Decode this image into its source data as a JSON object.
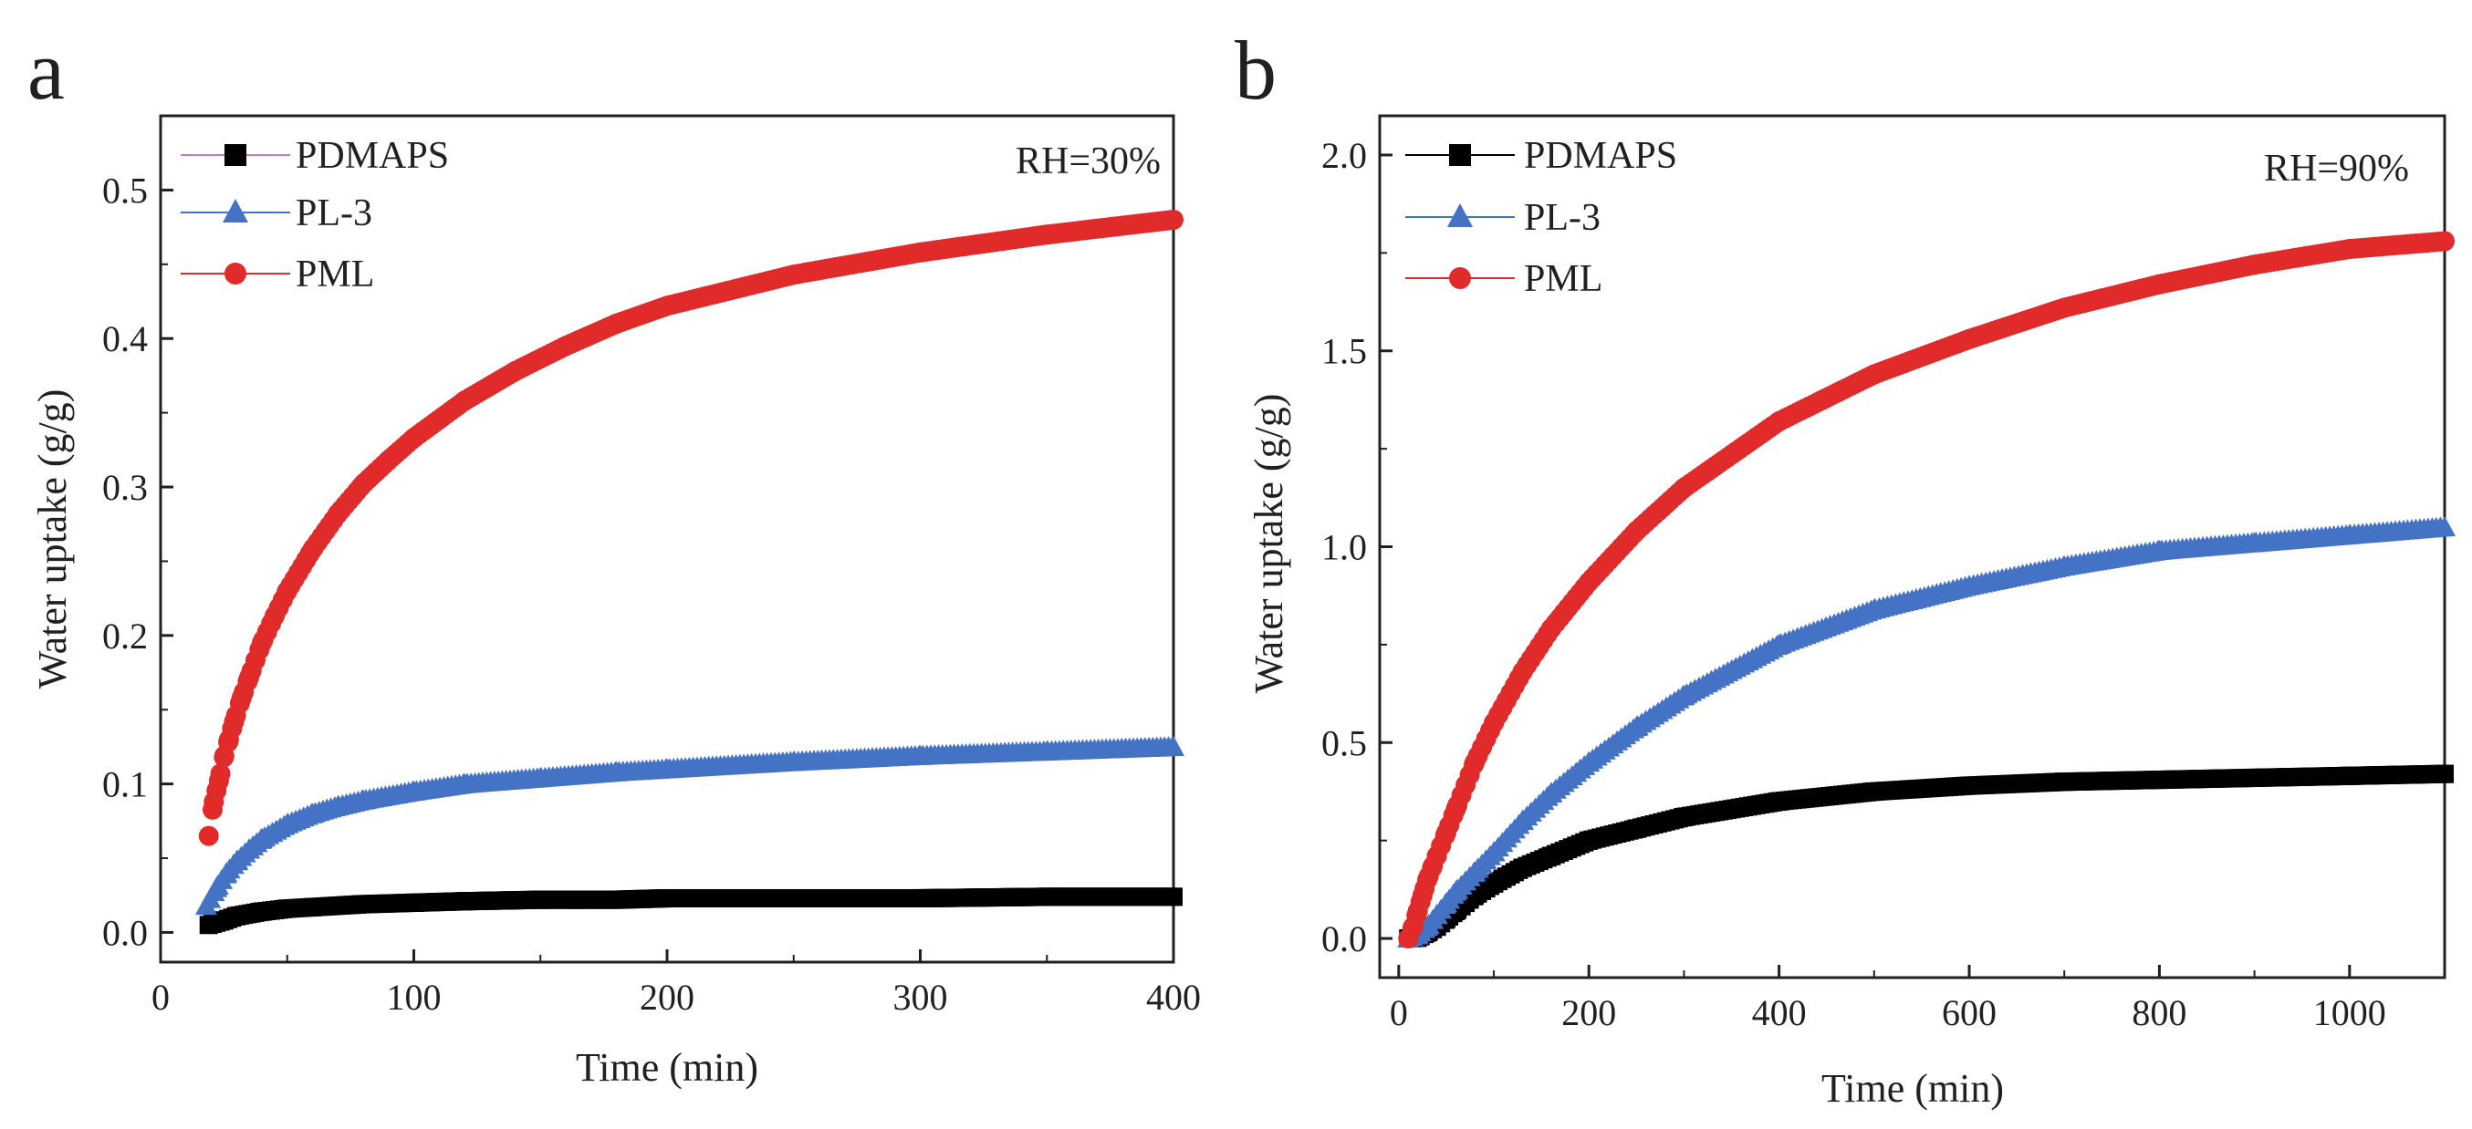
{
  "chart_data": [
    {
      "panel_label": "a",
      "type": "scatter",
      "title": "",
      "xlabel": "Time (min)",
      "ylabel": "Water uptake (g/g)",
      "xlim": [
        0,
        400
      ],
      "ylim": [
        -0.02,
        0.55
      ],
      "xticks": [
        0,
        100,
        200,
        300,
        400
      ],
      "xtick_labels": [
        "0",
        "100",
        "200",
        "300",
        "400"
      ],
      "yticks": [
        0.0,
        0.1,
        0.2,
        0.3,
        0.4,
        0.5
      ],
      "ytick_labels": [
        "0.0",
        "0.1",
        "0.2",
        "0.3",
        "0.4",
        "0.5"
      ],
      "grid": false,
      "legend_position": "top-left",
      "annotation": "RH=30%",
      "series": [
        {
          "name": "PDMAPS",
          "color": "#000000",
          "line_color": "#c080c0",
          "marker": "square",
          "x": [
            19,
            25,
            30,
            40,
            50,
            60,
            80,
            100,
            120,
            150,
            180,
            200,
            250,
            300,
            350,
            400
          ],
          "y": [
            0.005,
            0.008,
            0.011,
            0.014,
            0.016,
            0.017,
            0.019,
            0.02,
            0.021,
            0.022,
            0.022,
            0.023,
            0.023,
            0.023,
            0.024,
            0.024
          ]
        },
        {
          "name": "PL-3",
          "color": "#4472c4",
          "line_color": "#4472c4",
          "marker": "triangle",
          "x": [
            18,
            22,
            26,
            30,
            35,
            40,
            50,
            60,
            70,
            80,
            100,
            120,
            150,
            180,
            200,
            250,
            300,
            350,
            400
          ],
          "y": [
            0.018,
            0.03,
            0.04,
            0.048,
            0.056,
            0.063,
            0.073,
            0.08,
            0.085,
            0.089,
            0.095,
            0.1,
            0.104,
            0.108,
            0.11,
            0.115,
            0.119,
            0.122,
            0.125
          ]
        },
        {
          "name": "PML",
          "color": "#e12a2a",
          "line_color": "#e12a2a",
          "marker": "circle",
          "x": [
            19,
            21,
            23,
            25,
            27,
            29,
            32,
            35,
            40,
            45,
            50,
            60,
            70,
            80,
            90,
            100,
            120,
            140,
            160,
            180,
            200,
            250,
            300,
            350,
            400
          ],
          "y": [
            0.065,
            0.088,
            0.102,
            0.118,
            0.13,
            0.142,
            0.158,
            0.172,
            0.195,
            0.213,
            0.23,
            0.258,
            0.282,
            0.302,
            0.318,
            0.333,
            0.358,
            0.378,
            0.395,
            0.41,
            0.422,
            0.443,
            0.458,
            0.47,
            0.48
          ]
        }
      ]
    },
    {
      "panel_label": "b",
      "type": "scatter",
      "title": "",
      "xlabel": "Time (min)",
      "ylabel": "Water uptake (g/g)",
      "xlim": [
        -20,
        1100
      ],
      "ylim": [
        -0.1,
        2.1
      ],
      "xticks": [
        0,
        200,
        400,
        600,
        800,
        1000
      ],
      "xtick_labels": [
        "0",
        "200",
        "400",
        "600",
        "800",
        "1000"
      ],
      "yticks": [
        0.0,
        0.5,
        1.0,
        1.5,
        2.0
      ],
      "ytick_labels": [
        "0.0",
        "0.5",
        "1.0",
        "1.5",
        "2.0"
      ],
      "grid": false,
      "legend_position": "top-left",
      "annotation": "RH=90%",
      "series": [
        {
          "name": "PDMAPS",
          "color": "#000000",
          "line_color": "#000000",
          "marker": "square",
          "x": [
            10,
            20,
            30,
            40,
            50,
            60,
            80,
            100,
            130,
            160,
            200,
            250,
            300,
            400,
            500,
            600,
            700,
            800,
            900,
            1000,
            1100
          ],
          "y": [
            0.0,
            0.002,
            0.015,
            0.03,
            0.05,
            0.07,
            0.11,
            0.14,
            0.18,
            0.21,
            0.25,
            0.28,
            0.31,
            0.35,
            0.375,
            0.39,
            0.4,
            0.405,
            0.41,
            0.415,
            0.42
          ]
        },
        {
          "name": "PL-3",
          "color": "#4472c4",
          "line_color": "#4472c4",
          "marker": "triangle",
          "x": [
            10,
            20,
            30,
            40,
            50,
            60,
            80,
            100,
            130,
            160,
            200,
            250,
            300,
            400,
            500,
            600,
            700,
            800,
            900,
            1000,
            1100
          ],
          "y": [
            0.0,
            0.01,
            0.03,
            0.06,
            0.09,
            0.12,
            0.17,
            0.22,
            0.3,
            0.37,
            0.45,
            0.54,
            0.62,
            0.75,
            0.84,
            0.9,
            0.95,
            0.99,
            1.01,
            1.03,
            1.05
          ]
        },
        {
          "name": "PML",
          "color": "#e12a2a",
          "line_color": "#e12a2a",
          "marker": "circle",
          "x": [
            10,
            15,
            20,
            25,
            30,
            35,
            40,
            50,
            60,
            80,
            100,
            130,
            160,
            200,
            250,
            300,
            400,
            500,
            600,
            700,
            800,
            900,
            1000,
            1100
          ],
          "y": [
            0.0,
            0.03,
            0.07,
            0.11,
            0.15,
            0.18,
            0.21,
            0.27,
            0.33,
            0.45,
            0.55,
            0.68,
            0.79,
            0.91,
            1.04,
            1.15,
            1.32,
            1.44,
            1.53,
            1.61,
            1.67,
            1.72,
            1.76,
            1.78
          ]
        }
      ]
    }
  ]
}
